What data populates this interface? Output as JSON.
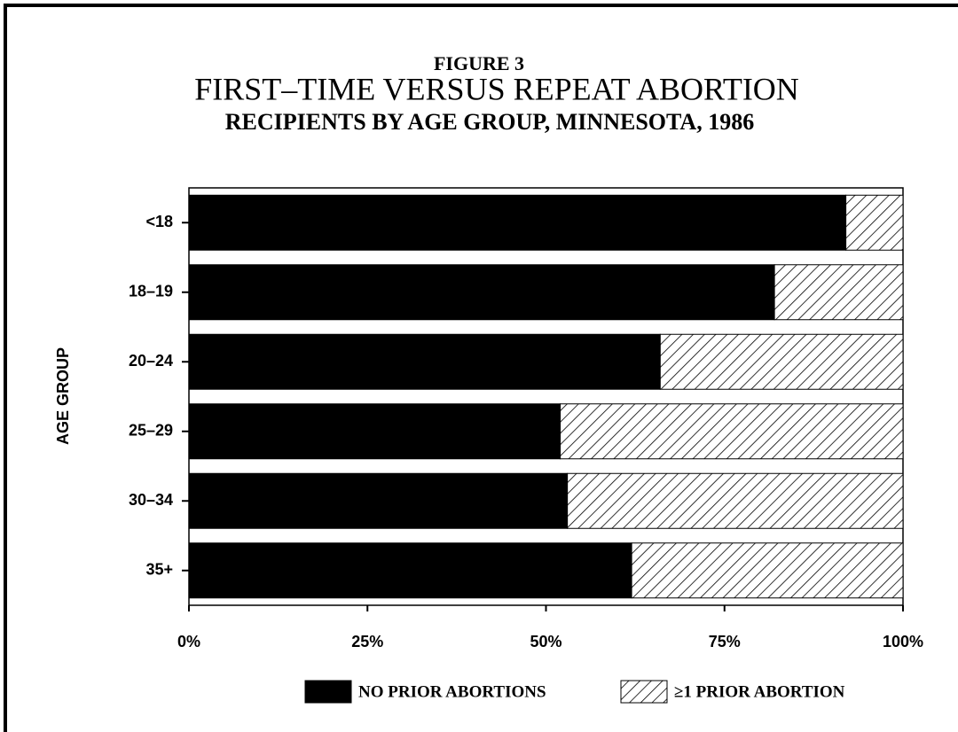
{
  "chart_data": {
    "type": "stacked_barh",
    "supertitle": "FIGURE 3",
    "title": "FIRST–TIME VERSUS REPEAT ABORTION",
    "subtitle": "RECIPIENTS BY AGE GROUP, MINNESOTA, 1986",
    "ylabel": "AGE GROUP",
    "categories": [
      "<18",
      "18–19",
      "20–24",
      "25–29",
      "30–34",
      "35+"
    ],
    "series": [
      {
        "name": "NO PRIOR ABORTIONS",
        "color": "#000000",
        "hatch": false,
        "values": [
          92,
          82,
          66,
          52,
          53,
          62
        ]
      },
      {
        "name": "≥1 PRIOR ABORTION",
        "color": "#000000",
        "hatch": true,
        "values": [
          8,
          18,
          34,
          48,
          47,
          38
        ]
      }
    ],
    "xlim": [
      0,
      100
    ],
    "xticks": [
      {
        "value": 0,
        "label": "0%"
      },
      {
        "value": 25,
        "label": "25%"
      },
      {
        "value": 50,
        "label": "50%"
      },
      {
        "value": 75,
        "label": "75%"
      },
      {
        "value": 100,
        "label": "100%"
      }
    ],
    "legend": "bottom"
  }
}
